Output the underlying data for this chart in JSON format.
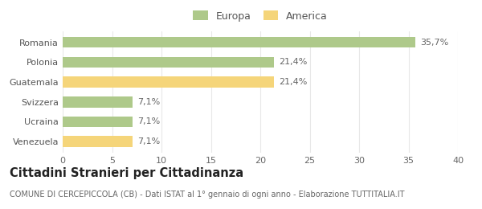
{
  "categories": [
    "Romania",
    "Polonia",
    "Guatemala",
    "Svizzera",
    "Ucraina",
    "Venezuela"
  ],
  "values": [
    35.7,
    21.4,
    21.4,
    7.1,
    7.1,
    7.1
  ],
  "colors": [
    "#aec98a",
    "#aec98a",
    "#f5d57a",
    "#aec98a",
    "#aec98a",
    "#f5d57a"
  ],
  "labels": [
    "35,7%",
    "21,4%",
    "21,4%",
    "7,1%",
    "7,1%",
    "7,1%"
  ],
  "legend": [
    {
      "label": "Europa",
      "color": "#aec98a"
    },
    {
      "label": "America",
      "color": "#f5d57a"
    }
  ],
  "xlim": [
    0,
    40
  ],
  "xticks": [
    0,
    5,
    10,
    15,
    20,
    25,
    30,
    35,
    40
  ],
  "title_main": "Cittadini Stranieri per Cittadinanza",
  "title_sub": "COMUNE DI CERCEPICCOLA (CB) - Dati ISTAT al 1° gennaio di ogni anno - Elaborazione TUTTITALIA.IT",
  "bg_color": "#ffffff",
  "grid_color": "#e8e8e8",
  "bar_height": 0.55,
  "label_fontsize": 8.0,
  "tick_fontsize": 8.0,
  "legend_fontsize": 9.0,
  "title_main_fontsize": 10.5,
  "title_sub_fontsize": 7.0
}
